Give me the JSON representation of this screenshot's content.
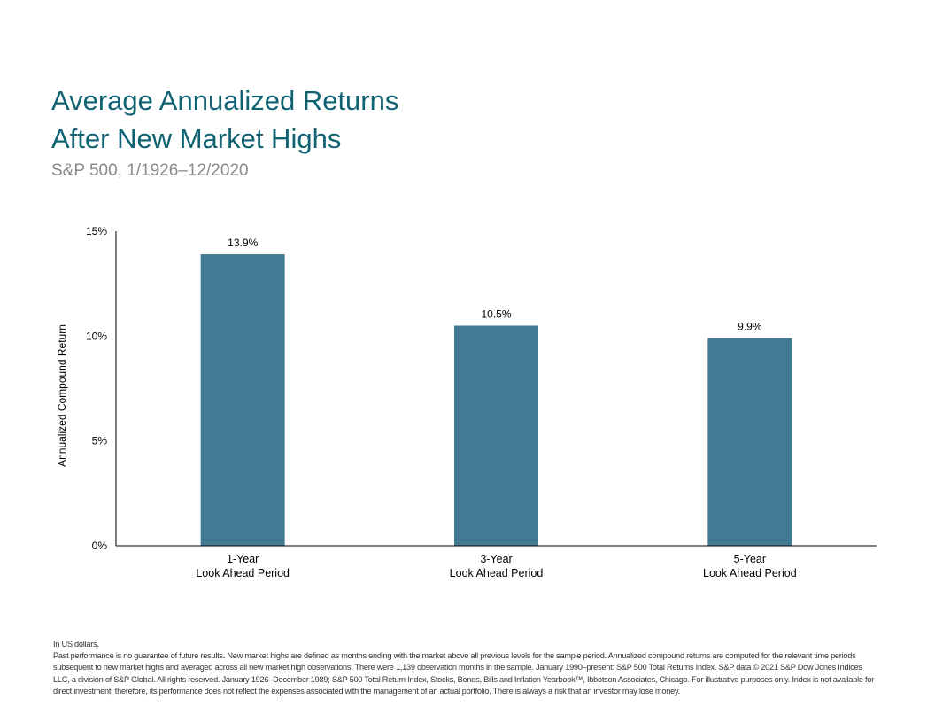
{
  "title_line1": "Average Annualized Returns",
  "title_line2": "After New Market Highs",
  "subtitle": "S&P 500, 1/1926–12/2020",
  "chart_data": {
    "type": "bar",
    "categories": [
      [
        "1-Year",
        "Look Ahead Period"
      ],
      [
        "3-Year",
        "Look Ahead Period"
      ],
      [
        "5-Year",
        "Look Ahead Period"
      ]
    ],
    "values": [
      13.9,
      10.5,
      9.9
    ],
    "data_labels": [
      "13.9%",
      "10.5%",
      "9.9%"
    ],
    "ylabel": "Annualized Compound Return",
    "ylim": [
      0,
      15
    ],
    "yticks": [
      0,
      5,
      10,
      15
    ],
    "ytick_labels": [
      "0%",
      "5%",
      "10%",
      "15%"
    ],
    "grid": false,
    "bar_color": "#427a94"
  },
  "notes": {
    "currency": "In US dollars.",
    "disclaimer": "Past performance is no guarantee of future results. New market highs are defined as months ending with the market above all previous levels for the sample period. Annualized compound returns are computed for the relevant time periods subsequent to new market highs and averaged across all new market high observations. There were 1,139 observation months in the sample. January 1990–present: S&P 500 Total Returns Index. S&P data © 2021 S&P Dow Jones Indices LLC, a division of S&P Global. All rights reserved. January 1926–December 1989; S&P 500 Total Return Index, Stocks, Bonds, Bills and Inflation Yearbook™, Ibbotson Associates, Chicago. For illustrative purposes only. Index is not available for direct investment; therefore, its performance does not reflect the expenses associated with the management of an actual portfolio. There is always a risk that an investor may lose money."
  }
}
